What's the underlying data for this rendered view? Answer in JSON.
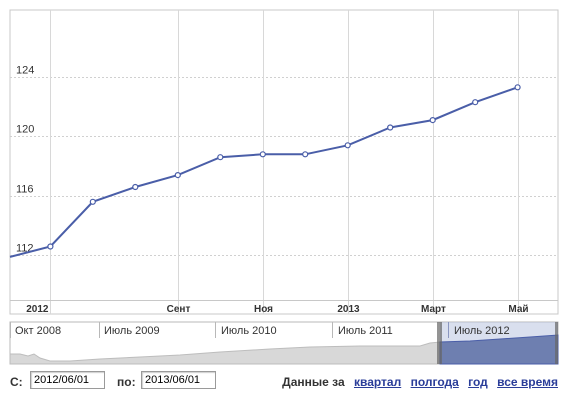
{
  "chart_data": {
    "type": "line",
    "y_ticks": [
      112,
      116,
      120,
      124
    ],
    "ylim": [
      109,
      128.5
    ],
    "x_ticks": [
      {
        "label": "2012",
        "x": 0
      },
      {
        "label": "Сент",
        "x": 3
      },
      {
        "label": "Ноя",
        "x": 5
      },
      {
        "label": "2013",
        "x": 7
      },
      {
        "label": "Март",
        "x": 9
      },
      {
        "label": "Май",
        "x": 11
      }
    ],
    "x_range": [
      -0.95,
      11.95
    ],
    "points": [
      {
        "x": -0.95,
        "y": 111.9
      },
      {
        "x": 0,
        "y": 112.6
      },
      {
        "x": 1,
        "y": 115.6
      },
      {
        "x": 2,
        "y": 116.6
      },
      {
        "x": 3,
        "y": 117.4
      },
      {
        "x": 4,
        "y": 118.6
      },
      {
        "x": 5,
        "y": 118.8
      },
      {
        "x": 6,
        "y": 118.8
      },
      {
        "x": 7,
        "y": 119.4
      },
      {
        "x": 8,
        "y": 120.6
      },
      {
        "x": 9,
        "y": 121.1
      },
      {
        "x": 10,
        "y": 122.3
      },
      {
        "x": 11,
        "y": 123.3
      }
    ],
    "line_color": "#4a5ea8",
    "grid": true
  },
  "navigator": {
    "labels": [
      "Окт 2008",
      "Июль 2009",
      "Июль 2010",
      "Июль 2011",
      "Июль 2012"
    ],
    "fill_color": "#d8d8d8",
    "selected_fill_color": "#6e7fb0"
  },
  "controls": {
    "from_label": "С:",
    "from_value": "2012/06/01",
    "to_label": "по:",
    "to_value": "2013/06/01",
    "data_label": "Данные за",
    "ranges": [
      "квартал",
      "полгода",
      "год",
      "все время"
    ]
  }
}
